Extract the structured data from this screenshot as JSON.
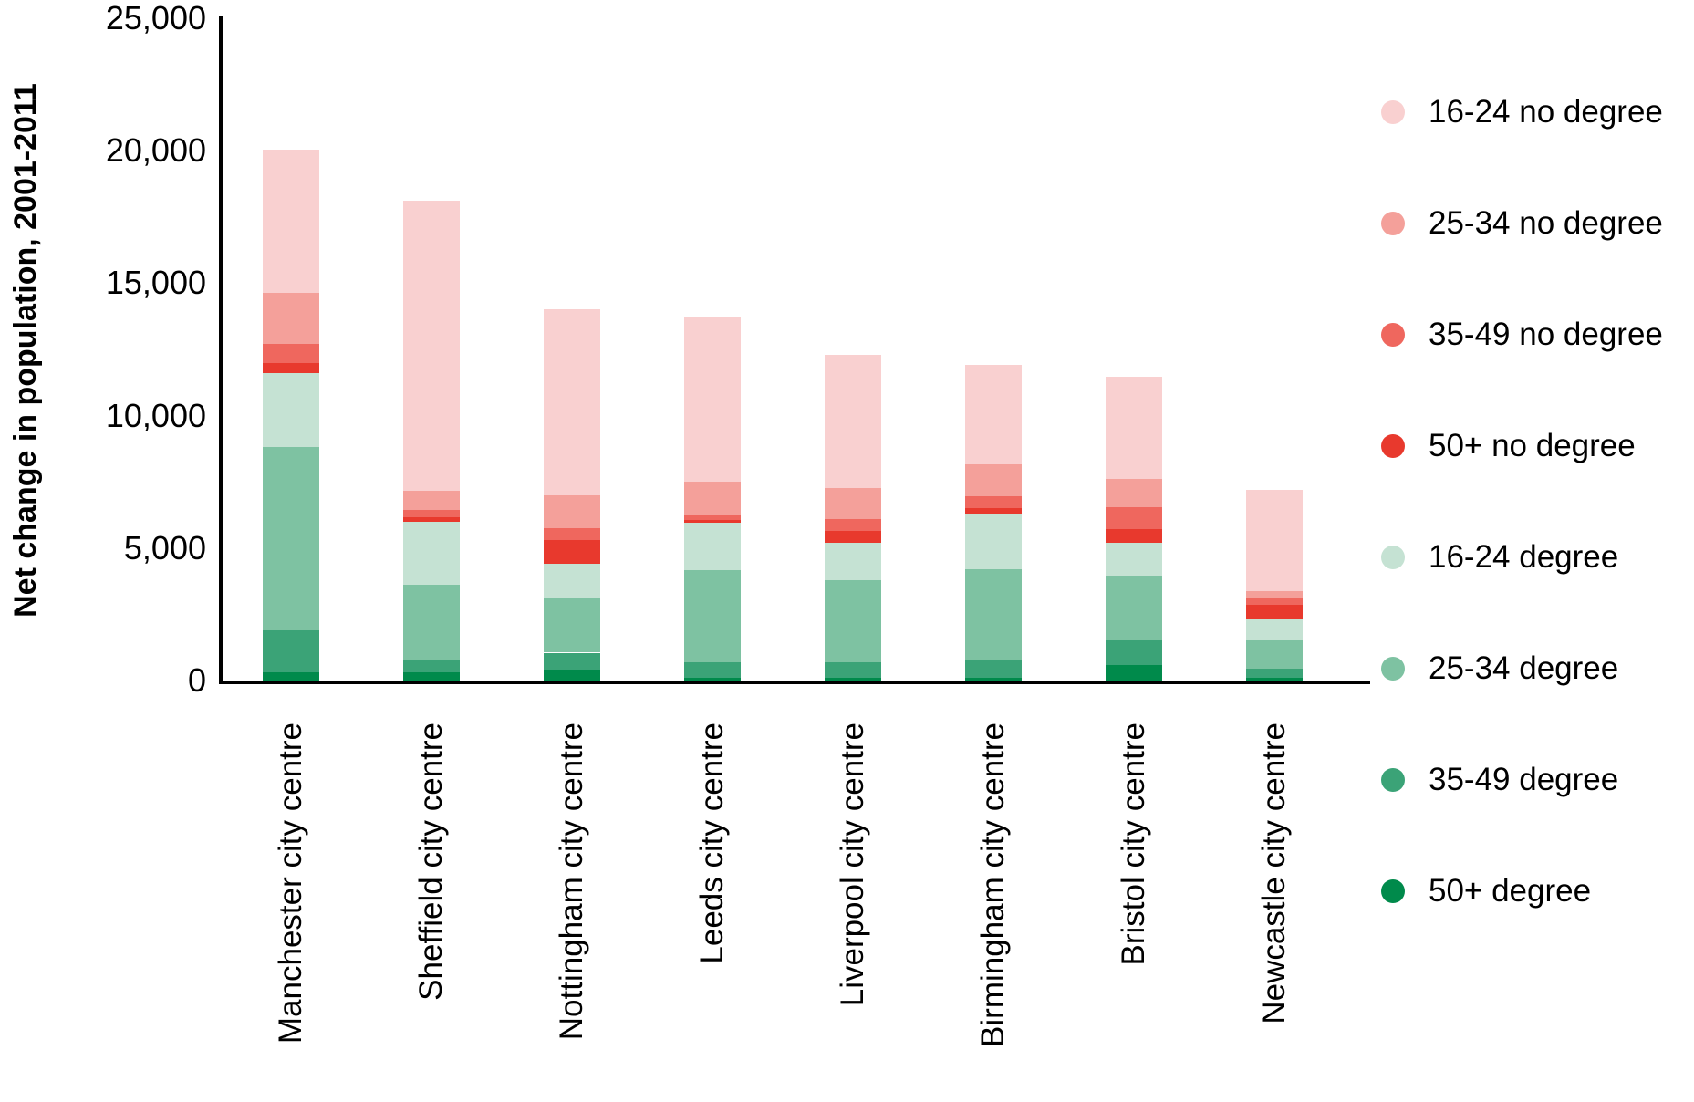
{
  "page": {
    "background": "#ffffff"
  },
  "chart_data": {
    "type": "bar",
    "stacked": true,
    "title": "",
    "ylabel": "Net change in population, 2001-2011",
    "xlabel": "",
    "ylim": [
      0,
      25000
    ],
    "ytick_values": [
      0,
      5000,
      10000,
      15000,
      20000,
      25000
    ],
    "ytick_labels": [
      "0",
      "5,000",
      "10,000",
      "15,000",
      "20,000",
      "25,000"
    ],
    "grid": false,
    "legend_position": "right",
    "categories": [
      "Manchester city centre",
      "Sheffield city centre",
      "Nottingham city centre",
      "Leeds city centre",
      "Liverpool city centre",
      "Birmingham city centre",
      "Bristol city centre",
      "Newcastle city centre"
    ],
    "series": [
      {
        "name": "50+ degree",
        "color": "#008a4b",
        "values": [
          300,
          300,
          400,
          100,
          100,
          100,
          600,
          100
        ]
      },
      {
        "name": "35-49 degree",
        "color": "#3ba377",
        "values": [
          1600,
          450,
          650,
          600,
          600,
          700,
          900,
          350
        ]
      },
      {
        "name": "25-34 degree",
        "color": "#7ec2a2",
        "values": [
          6900,
          2850,
          2100,
          3450,
          3100,
          3400,
          2450,
          1050
        ]
      },
      {
        "name": "16-24 degree",
        "color": "#c5e2d3",
        "values": [
          2800,
          2400,
          1270,
          1800,
          1400,
          2100,
          1250,
          850
        ]
      },
      {
        "name": "50+ no degree",
        "color": "#e8392d",
        "values": [
          400,
          170,
          870,
          100,
          450,
          200,
          500,
          500
        ]
      },
      {
        "name": "35-49 no degree",
        "color": "#ef675e",
        "values": [
          700,
          270,
          470,
          170,
          450,
          450,
          850,
          250
        ]
      },
      {
        "name": "25-34 no degree",
        "color": "#f4a09a",
        "values": [
          1950,
          730,
          1220,
          1300,
          1170,
          1200,
          1050,
          280
        ]
      },
      {
        "name": "16-24 no degree",
        "color": "#f9d0d0",
        "values": [
          5400,
          10950,
          7020,
          6180,
          5030,
          3750,
          3850,
          3800
        ]
      }
    ],
    "legend_labels_top_to_bottom": [
      "16-24 no degree",
      "25-34 no degree",
      "35-49 no degree",
      "50+ no degree",
      "16-24 degree",
      "25-34 degree",
      "35-49 degree",
      "50+ degree"
    ]
  }
}
